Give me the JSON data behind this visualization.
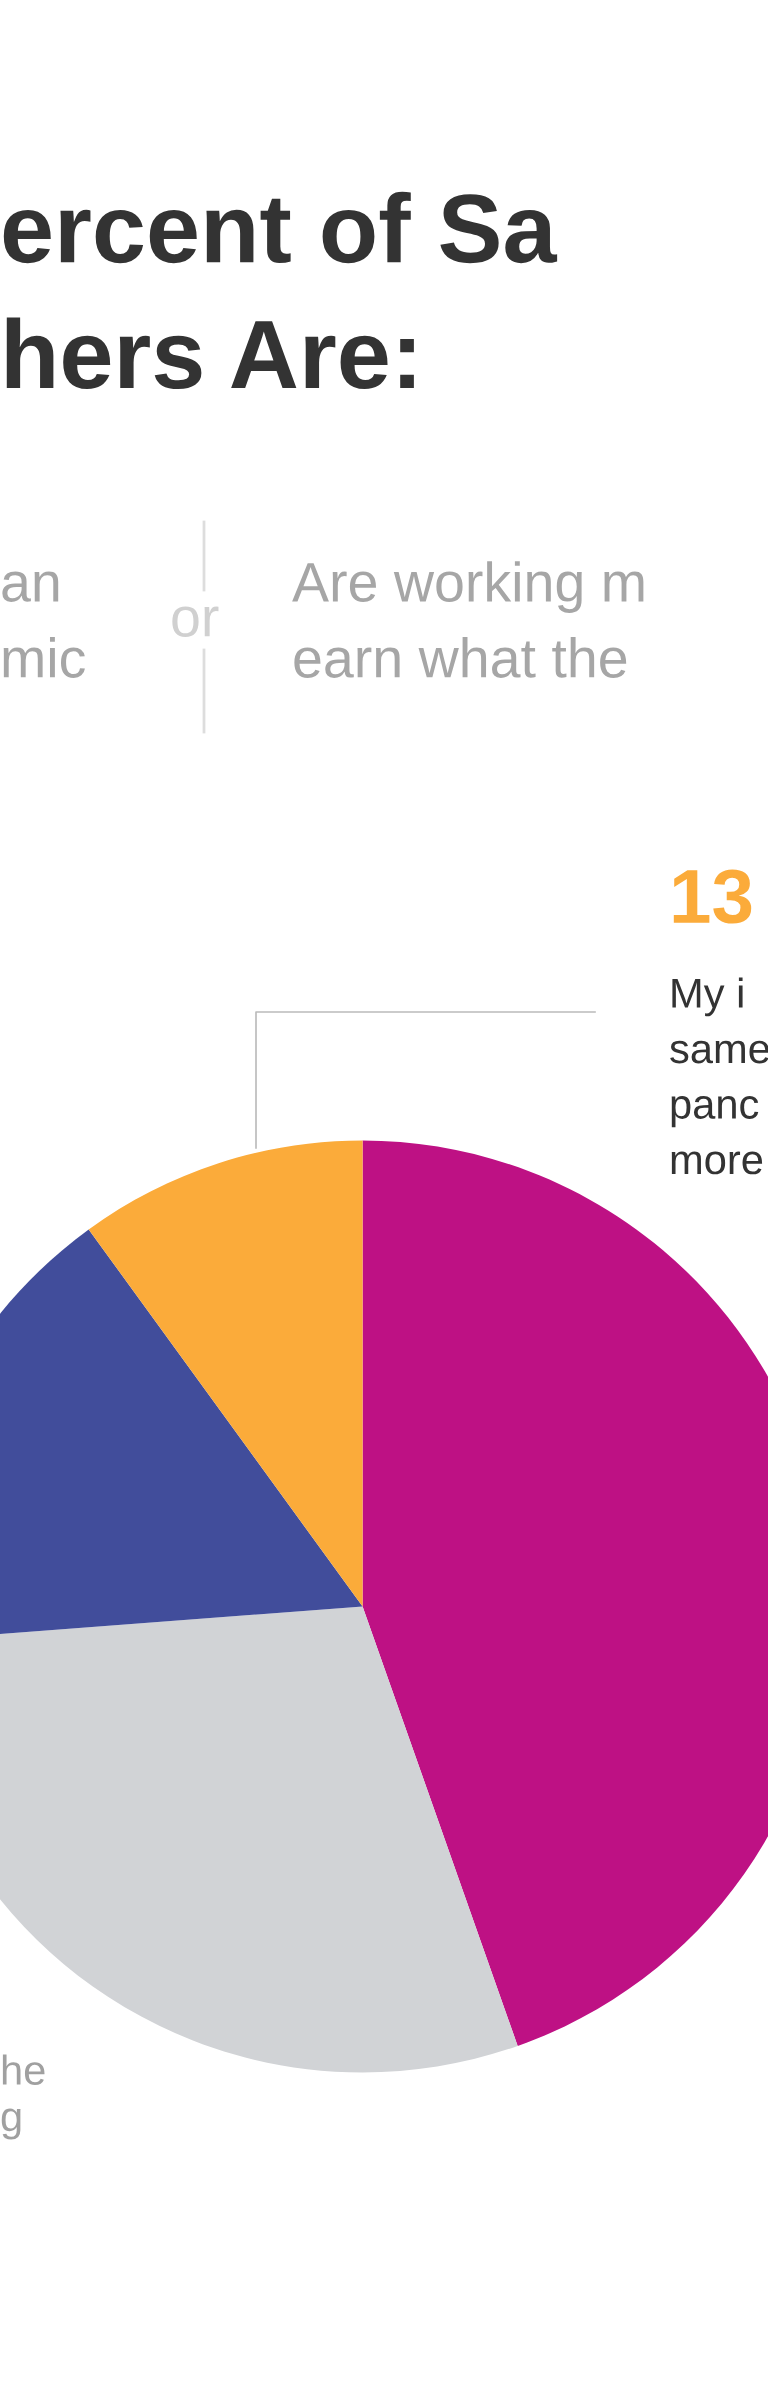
{
  "chart_data": {
    "type": "pie",
    "title": "ercent of Sa\nhers Are:",
    "categories": [
      null,
      null,
      null,
      null
    ],
    "values": [
      44.6,
      29.2,
      16.2,
      10.0
    ],
    "colors": [
      "#be1184",
      "#d1d3d6",
      "#414d9b",
      "#fbab3a"
    ],
    "annotations": [
      "an\nmic",
      "or",
      "Are working m\nearn what the",
      "13",
      "My i\nsame\npanc\nmore",
      "he\ng"
    ]
  }
}
